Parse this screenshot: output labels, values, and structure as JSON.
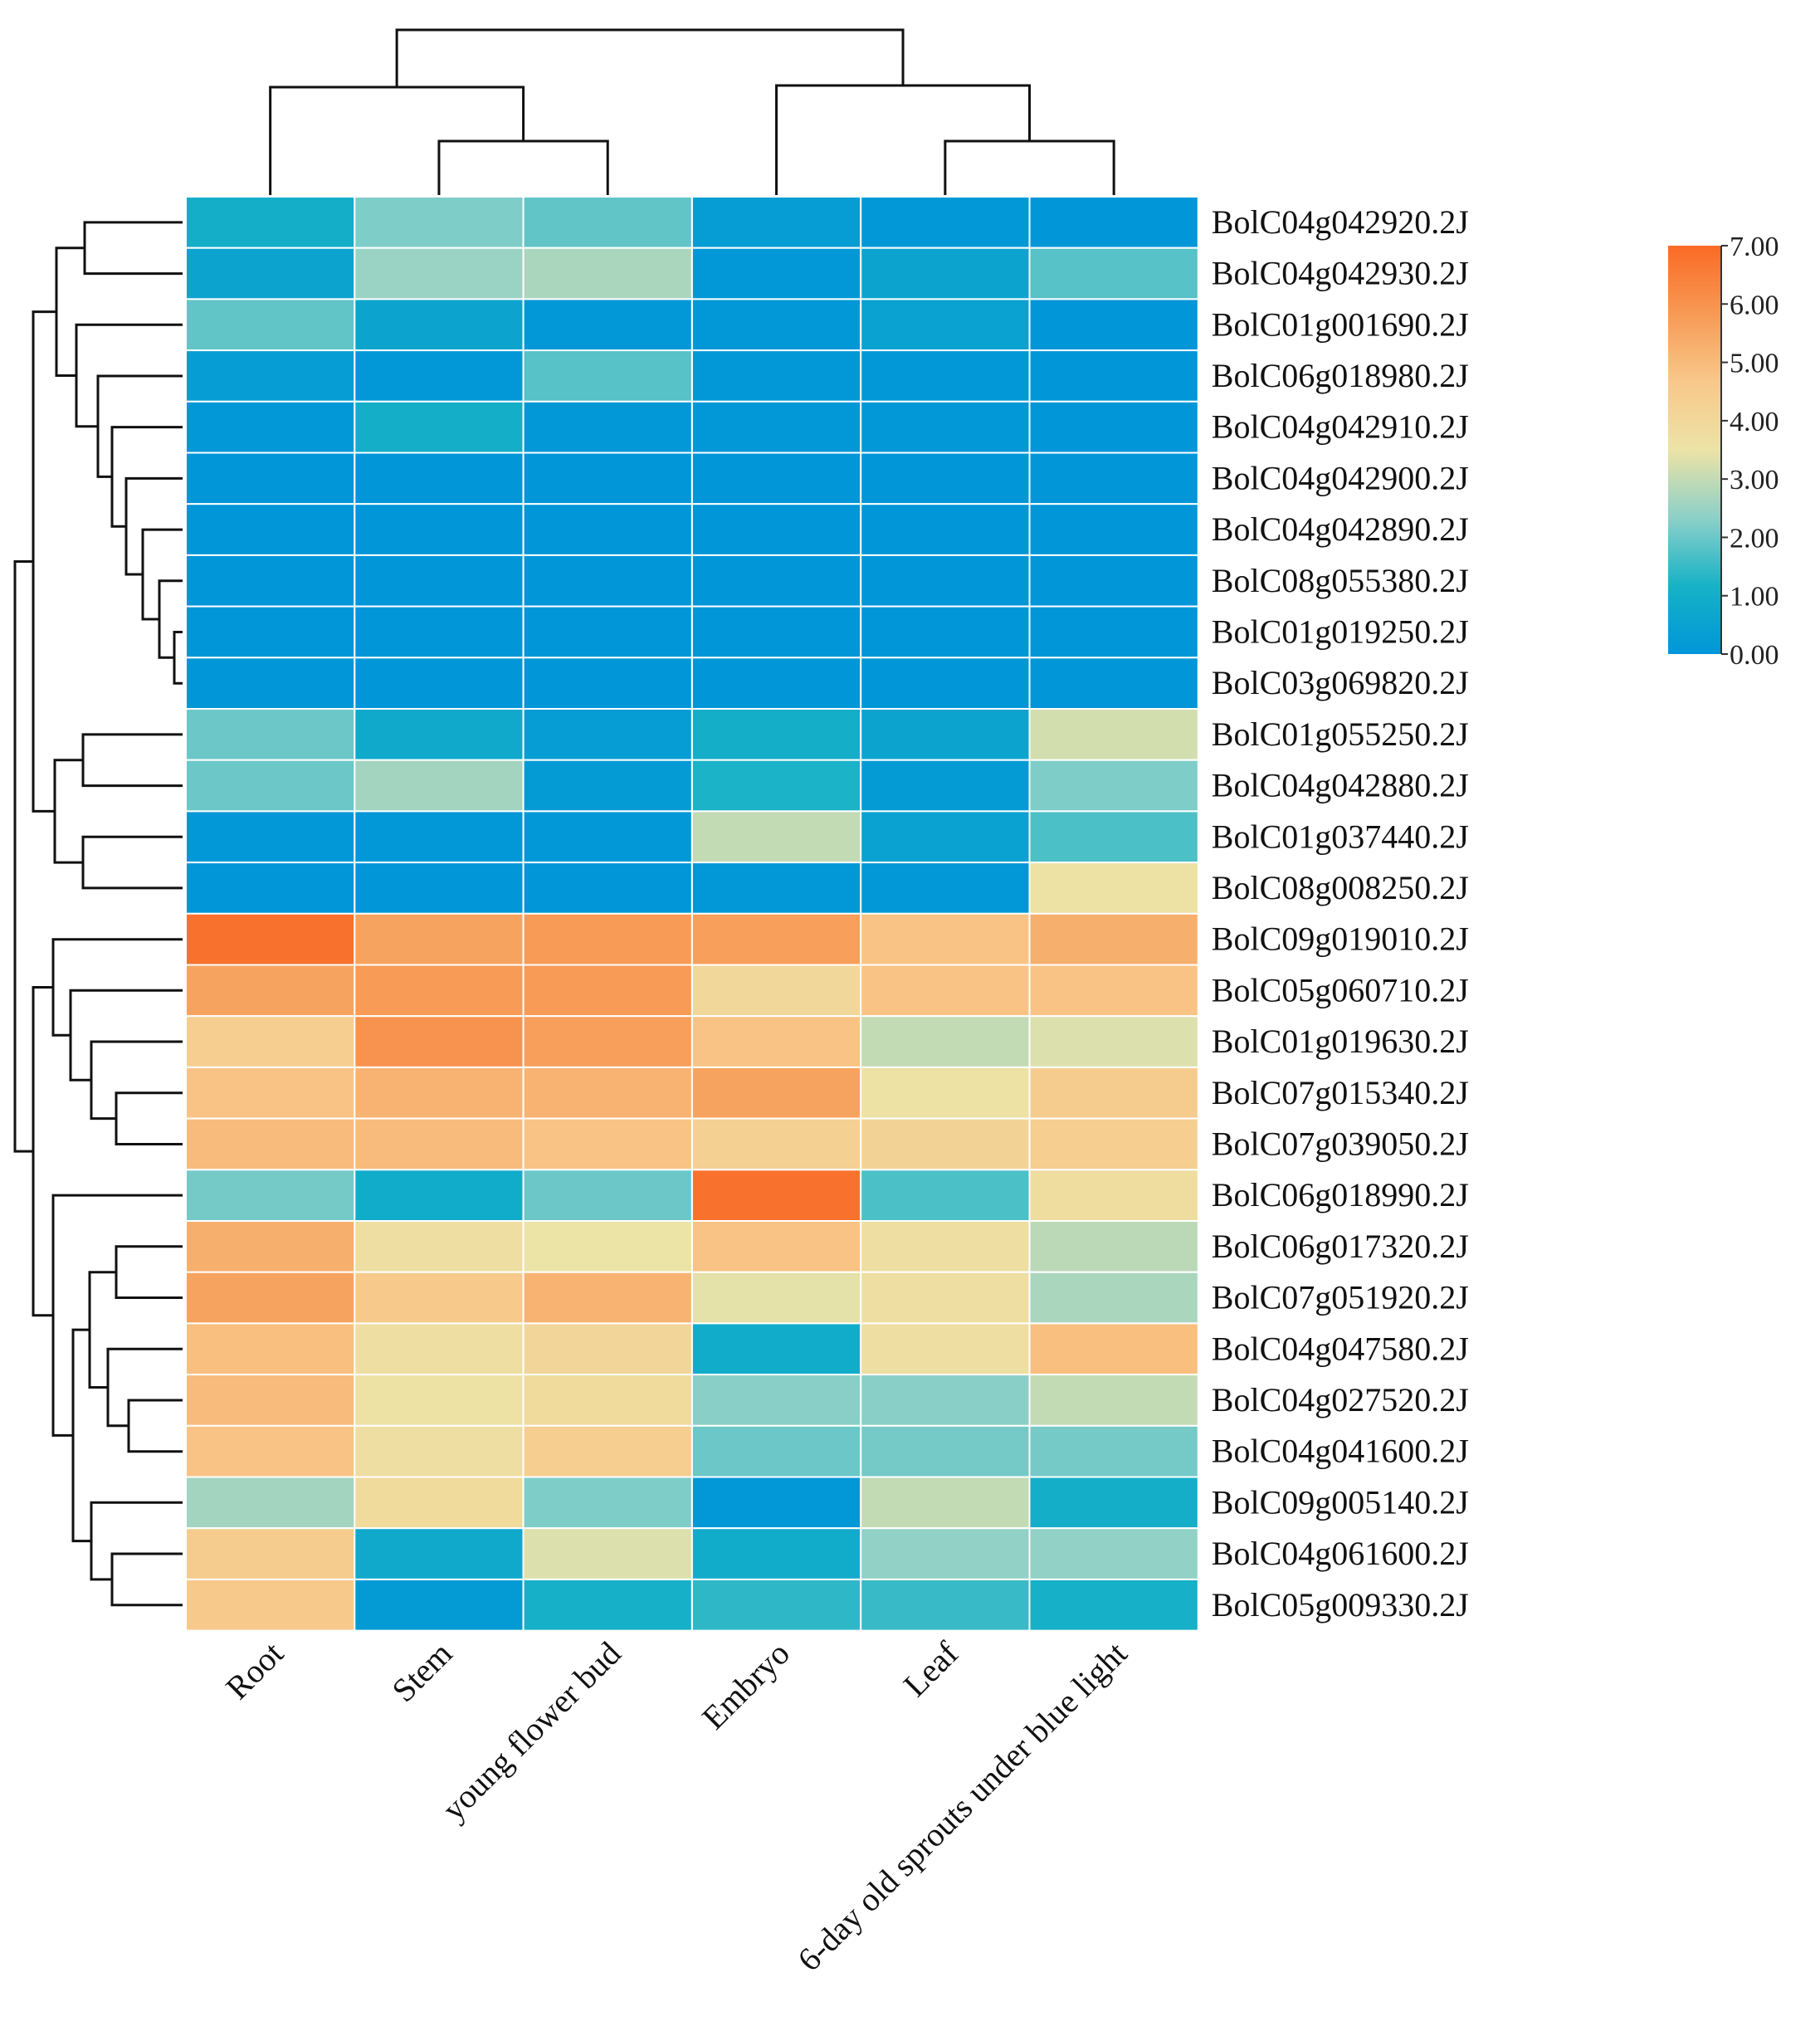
{
  "chart_data": {
    "type": "heatmap",
    "title": "",
    "columns": [
      "Root",
      "Stem",
      "young flower bud",
      "Embryo",
      "Leaf",
      "6-day old sprouts under blue light"
    ],
    "rows": [
      "BolC04g042920.2J",
      "BolC04g042930.2J",
      "BolC01g001690.2J",
      "BolC06g018980.2J",
      "BolC04g042910.2J",
      "BolC04g042900.2J",
      "BolC04g042890.2J",
      "BolC08g055380.2J",
      "BolC01g019250.2J",
      "BolC03g069820.2J",
      "BolC01g055250.2J",
      "BolC04g042880.2J",
      "BolC01g037440.2J",
      "BolC08g008250.2J",
      "BolC09g019010.2J",
      "BolC05g060710.2J",
      "BolC01g019630.2J",
      "BolC07g015340.2J",
      "BolC07g039050.2J",
      "BolC06g018990.2J",
      "BolC06g017320.2J",
      "BolC07g051920.2J",
      "BolC04g047580.2J",
      "BolC04g027520.2J",
      "BolC04g041600.2J",
      "BolC09g005140.2J",
      "BolC04g061600.2J",
      "BolC05g009330.2J"
    ],
    "values": [
      [
        1.0,
        2.2,
        1.9,
        0.3,
        0.1,
        0.0
      ],
      [
        0.6,
        2.5,
        2.7,
        0.1,
        0.6,
        1.8
      ],
      [
        1.9,
        0.6,
        0.1,
        0.1,
        0.5,
        0.0
      ],
      [
        0.3,
        0.1,
        1.8,
        0.1,
        0.1,
        0.0
      ],
      [
        0.1,
        1.0,
        0.1,
        0.1,
        0.1,
        0.0
      ],
      [
        0.0,
        0.0,
        0.0,
        0.0,
        0.0,
        0.0
      ],
      [
        0.0,
        0.0,
        0.0,
        0.0,
        0.0,
        0.0
      ],
      [
        0.0,
        0.0,
        0.0,
        0.0,
        0.0,
        0.0
      ],
      [
        0.0,
        0.0,
        0.0,
        0.0,
        0.0,
        0.0
      ],
      [
        0.0,
        0.0,
        0.0,
        0.0,
        0.0,
        0.0
      ],
      [
        2.0,
        0.8,
        0.3,
        1.0,
        0.6,
        3.2
      ],
      [
        2.0,
        2.6,
        0.2,
        1.2,
        0.2,
        2.2
      ],
      [
        0.1,
        0.1,
        0.1,
        3.0,
        0.5,
        1.7
      ],
      [
        0.0,
        0.0,
        0.0,
        0.1,
        0.1,
        3.6
      ],
      [
        6.8,
        5.6,
        5.8,
        5.7,
        4.8,
        5.3
      ],
      [
        5.6,
        5.8,
        5.8,
        4.0,
        4.8,
        4.8
      ],
      [
        4.4,
        6.0,
        5.7,
        4.8,
        3.0,
        3.3
      ],
      [
        4.8,
        5.2,
        5.2,
        5.6,
        3.6,
        4.5
      ],
      [
        5.0,
        5.0,
        4.8,
        4.3,
        4.2,
        4.4
      ],
      [
        2.1,
        0.9,
        2.0,
        6.8,
        1.7,
        3.8
      ],
      [
        5.3,
        3.7,
        3.5,
        4.8,
        3.7,
        2.9
      ],
      [
        5.6,
        4.6,
        5.2,
        3.4,
        3.7,
        2.7
      ],
      [
        4.9,
        3.7,
        4.1,
        0.9,
        3.7,
        4.9
      ],
      [
        5.0,
        3.6,
        3.9,
        2.3,
        2.3,
        3.0
      ],
      [
        4.8,
        3.7,
        4.4,
        2.0,
        2.1,
        2.1
      ],
      [
        2.6,
        3.9,
        2.2,
        0.1,
        3.0,
        1.0
      ],
      [
        4.5,
        0.8,
        3.3,
        0.9,
        2.4,
        2.4
      ],
      [
        4.6,
        0.2,
        1.1,
        1.4,
        1.5,
        1.1
      ]
    ],
    "legend": {
      "min": 0.0,
      "max": 7.0,
      "ticks": [
        "7.00",
        "6.00",
        "5.00",
        "4.00",
        "3.00",
        "2.00",
        "1.00",
        "0.00"
      ],
      "position": "top-right"
    },
    "colormap": [
      "#0096d8",
      "#17b2c7",
      "#8cd0c8",
      "#ece3a6",
      "#f8c88a",
      "#f79a55",
      "#fa6a25"
    ]
  }
}
